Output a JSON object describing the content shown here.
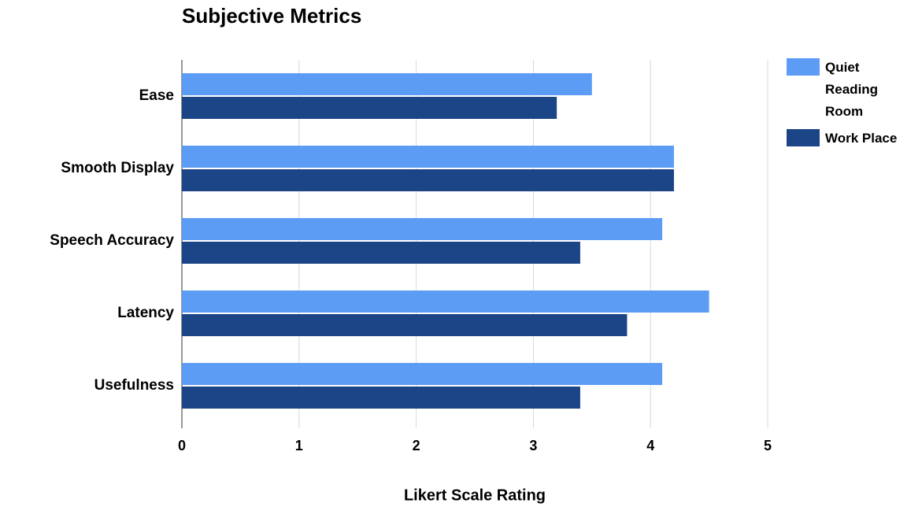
{
  "chart_data": {
    "type": "hbar",
    "title": "Subjective Metrics",
    "x_label": "Likert Scale Rating",
    "categories": [
      "Ease",
      "Smooth Display",
      "Speech Accuracy",
      "Latency",
      "Usefulness"
    ],
    "series": [
      {
        "name": "Quiet Reading Room",
        "color": "#5d9cf5",
        "values": [
          3.5,
          4.2,
          4.1,
          4.5,
          4.1
        ]
      },
      {
        "name": "Work Place",
        "color": "#1c4587",
        "values": [
          3.2,
          4.2,
          3.4,
          3.8,
          3.4
        ]
      }
    ],
    "xlim": [
      0,
      5
    ],
    "xticks": [
      0,
      1,
      2,
      3,
      4,
      5
    ],
    "grid": true,
    "legend": "right"
  }
}
